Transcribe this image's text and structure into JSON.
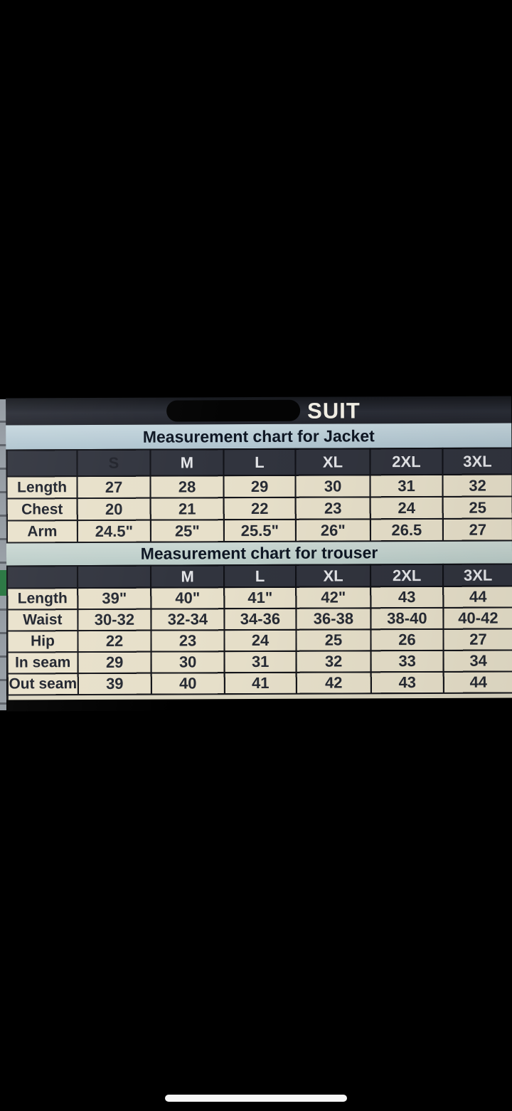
{
  "title_bar": {
    "title": "SUIT",
    "redaction_note": "black-redacted-brand-name"
  },
  "jacket": {
    "caption": "Measurement chart for Jacket",
    "header": [
      "",
      "S",
      "M",
      "L",
      "XL",
      "2XL",
      "3XL"
    ],
    "rows": [
      {
        "label": "Length",
        "values": [
          "27",
          "28",
          "29",
          "30",
          "31",
          "32"
        ]
      },
      {
        "label": "Chest",
        "values": [
          "20",
          "21",
          "22",
          "23",
          "24",
          "25"
        ]
      },
      {
        "label": "Arm",
        "values": [
          "24.5\"",
          "25\"",
          "25.5\"",
          "26\"",
          "26.5",
          "27"
        ]
      }
    ]
  },
  "trouser": {
    "caption": "Measurement chart for trouser",
    "header": [
      "",
      "",
      "M",
      "L",
      "XL",
      "2XL",
      "3XL"
    ],
    "rows": [
      {
        "label": "Length",
        "values": [
          "39\"",
          "40\"",
          "41\"",
          "42\"",
          "43",
          "44"
        ]
      },
      {
        "label": "Waist",
        "values": [
          "30-32",
          "32-34",
          "34-36",
          "36-38",
          "38-40",
          "40-42"
        ]
      },
      {
        "label": "Hip",
        "values": [
          "22",
          "23",
          "24",
          "25",
          "26",
          "27"
        ]
      },
      {
        "label": "In seam",
        "values": [
          "29",
          "30",
          "31",
          "32",
          "33",
          "34"
        ]
      },
      {
        "label": "Out seam",
        "values": [
          "39",
          "40",
          "41",
          "42",
          "43",
          "44"
        ]
      }
    ]
  },
  "colors": {
    "screen_background": "#000000",
    "title_bar": "#23252d",
    "title_text": "#f4f1e7",
    "jacket_band": "#b9cdd6",
    "trouser_band": "#c2d3ce",
    "header_row": "#31343e",
    "header_text": "#e4e5e8",
    "cell_background": "#e7e0ca",
    "cell_text": "#272b34",
    "home_indicator": "#f6f6f6"
  }
}
